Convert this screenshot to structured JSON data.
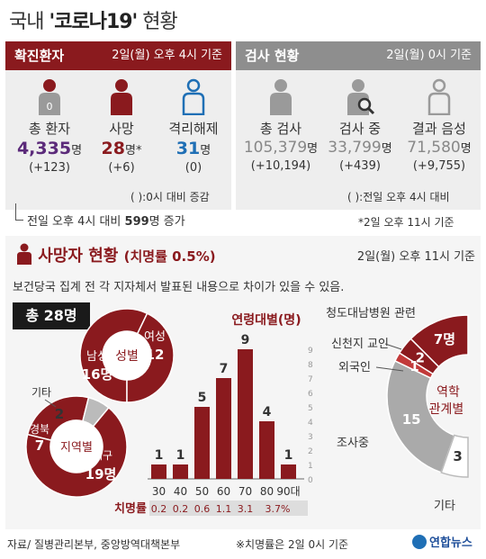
{
  "title": {
    "prefix": "국내 ",
    "highlight": "'코로나19'",
    "suffix": " 현황"
  },
  "confirmed": {
    "header": "확진환자",
    "time": "2일(월) 오후 4시 기준",
    "items": [
      {
        "label": "총 환자",
        "value": "4,335",
        "unit": "명",
        "change": "(+123)",
        "color": "#5b2a7a"
      },
      {
        "label": "사망",
        "value": "28",
        "unit": "명*",
        "change": "(+6)",
        "color": "#8a1a1e"
      },
      {
        "label": "격리해제",
        "value": "31",
        "unit": "명",
        "change": "(0)",
        "color": "#1f6fb5"
      }
    ],
    "legend_note": "( ):0시 대비 증감",
    "delta_note_prefix": "전일 오후 4시 대비 ",
    "delta_note_value": "599",
    "delta_note_suffix": "명 증가"
  },
  "tests": {
    "header": "검사 현황",
    "time": "2일(월) 0시 기준",
    "items": [
      {
        "label": "총 검사",
        "value": "105,379",
        "unit": "명",
        "change": "(+10,194)"
      },
      {
        "label": "검사 중",
        "value": "33,799",
        "unit": "명",
        "change": "(+439)"
      },
      {
        "label": "결과 음성",
        "value": "71,580",
        "unit": "명",
        "change": "(+9,755)"
      }
    ],
    "legend_note": "( ):전일 오후 4시 대비",
    "footnote": "*2일 오후 11시 기준"
  },
  "deaths": {
    "title": "사망자 현황",
    "rate": "(치명률 0.5%)",
    "time": "2일(월) 오후 11시 기준",
    "disclaimer": "보건당국 집계 전 각 지자체서 발표된 내용으로 차이가 있을 수 있음.",
    "total": "총 28명"
  },
  "colors": {
    "dark_red": "#8a1a1e",
    "grey": "#8e8e8e",
    "light_grey": "#eeeeee",
    "purple": "#5b2a7a",
    "blue": "#1f6fb5"
  },
  "chart_data": [
    {
      "type": "pie",
      "title": "성별",
      "slices": [
        {
          "label": "남성",
          "value": 16,
          "value_label": "16명"
        },
        {
          "label": "여성",
          "value": 12,
          "value_label": "12"
        }
      ]
    },
    {
      "type": "pie",
      "title": "지역별",
      "slices": [
        {
          "label": "대구",
          "value": 19,
          "value_label": "19명"
        },
        {
          "label": "경북",
          "value": 7,
          "value_label": "7"
        },
        {
          "label": "기타",
          "value": 2,
          "value_label": "2"
        }
      ]
    },
    {
      "type": "bar",
      "title": "연령대별(명)",
      "categories": [
        "30",
        "40",
        "50",
        "60",
        "70",
        "80",
        "90대"
      ],
      "values": [
        1,
        1,
        5,
        7,
        9,
        4,
        1
      ],
      "ylim": [
        0,
        9
      ],
      "yticks": [
        "0",
        "1",
        "2",
        "3",
        "4",
        "5",
        "6",
        "7",
        "8",
        "9"
      ],
      "rate_label": "치명률",
      "fatality_rates": [
        "0.2",
        "0.2",
        "0.6",
        "1.1",
        "3.1",
        "3.7%"
      ]
    },
    {
      "type": "pie",
      "title": "역학 관계별",
      "slices": [
        {
          "label": "청도대남병원 관련",
          "value": 7,
          "value_label": "7명"
        },
        {
          "label": "신천지 교인",
          "value": 2,
          "value_label": "2"
        },
        {
          "label": "외국인",
          "value": 1,
          "value_label": "1"
        },
        {
          "label": "조사중",
          "value": 15,
          "value_label": "15"
        },
        {
          "label": "기타",
          "value": 3,
          "value_label": "3"
        }
      ]
    }
  ],
  "footer": {
    "source": "자료/ 질병관리본부, 중앙방역대책본부",
    "note": "※치명률은 2일 0시 기준",
    "logo": "연합뉴스"
  }
}
